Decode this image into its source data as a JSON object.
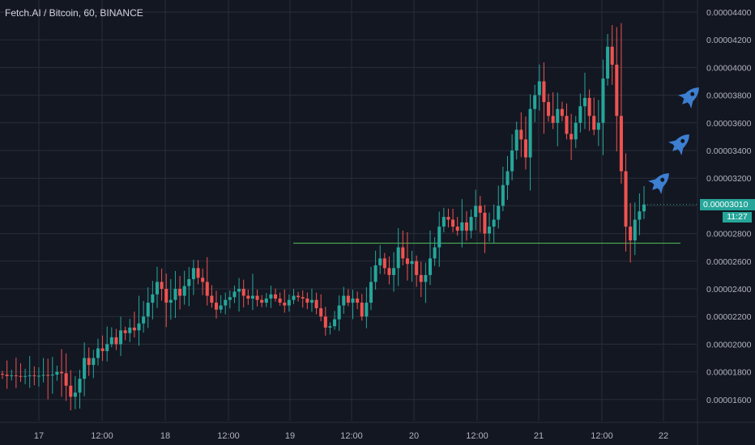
{
  "header": {
    "symbol": "Fetch.AI / Bitcoin",
    "separator": "/",
    "interval": "60",
    "exchange": "BINANCE",
    "title": "Fetch.AI / Bitcoin, 60, BINANCE"
  },
  "price_badge": {
    "value": "0.00003010",
    "price": 3.01e-05,
    "countdown": "11:27"
  },
  "colors": {
    "background": "#131722",
    "grid": "#2a2e39",
    "up": "#26a69a",
    "down": "#ef5350",
    "support_line": "#4caf50",
    "rocket": "#3d7fd1",
    "axis_text": "#b2b5be"
  },
  "icons": [
    "rocket-icon",
    "rocket-icon",
    "rocket-icon"
  ],
  "chart_data": {
    "type": "candlestick",
    "x_axis_labels": [
      "17",
      "12:00",
      "18",
      "12:00",
      "19",
      "12:00",
      "20",
      "12:00",
      "21",
      "12:00",
      "22"
    ],
    "y_axis_labels": [
      "0.00004400",
      "0.00004200",
      "0.00004000",
      "0.00003800",
      "0.00003600",
      "0.00003400",
      "0.00003200",
      "0.00003000",
      "0.00002800",
      "0.00002600",
      "0.00002400",
      "0.00002200",
      "0.00002000",
      "0.00001800",
      "0.00001600"
    ],
    "ylim": [
      1.48e-05,
      4.6e-05
    ],
    "grid": true,
    "support_level": 2.73e-05,
    "closes": [
      1.78e-05,
      1.77e-05,
      1.775e-05,
      1.77e-05,
      1.765e-05,
      1.77e-05,
      1.775e-05,
      1.77e-05,
      1.772e-05,
      1.778e-05,
      1.775e-05,
      1.78e-05,
      1.8e-05,
      1.79e-05,
      1.7e-05,
      1.62e-05,
      1.65e-05,
      1.75e-05,
      1.9e-05,
      1.85e-05,
      1.9e-05,
      1.97e-05,
      1.95e-05,
      2e-05,
      2.05e-05,
      2e-05,
      2.1e-05,
      2.08e-05,
      2.12e-05,
      2.1e-05,
      2.15e-05,
      2.2e-05,
      2.3e-05,
      2.36e-05,
      2.45e-05,
      2.4e-05,
      2.3e-05,
      2.32e-05,
      2.4e-05,
      2.35e-05,
      2.42e-05,
      2.47e-05,
      2.55e-05,
      2.48e-05,
      2.45e-05,
      2.35e-05,
      2.3e-05,
      2.25e-05,
      2.28e-05,
      2.32e-05,
      2.34e-05,
      2.38e-05,
      2.4e-05,
      2.35e-05,
      2.33e-05,
      2.35e-05,
      2.32e-05,
      2.3e-05,
      2.33e-05,
      2.36e-05,
      2.33e-05,
      2.3e-05,
      2.28e-05,
      2.32e-05,
      2.35e-05,
      2.34e-05,
      2.33e-05,
      2.3e-05,
      2.32e-05,
      2.26e-05,
      2.2e-05,
      2.12e-05,
      2.13e-05,
      2.18e-05,
      2.28e-05,
      2.35e-05,
      2.3e-05,
      2.33e-05,
      2.3e-05,
      2.2e-05,
      2.3e-05,
      2.45e-05,
      2.57e-05,
      2.62e-05,
      2.55e-05,
      2.5e-05,
      2.55e-05,
      2.7e-05,
      2.62e-05,
      2.58e-05,
      2.6e-05,
      2.5e-05,
      2.45e-05,
      2.5e-05,
      2.62e-05,
      2.7e-05,
      2.85e-05,
      2.92e-05,
      2.9e-05,
      2.85e-05,
      2.82e-05,
      2.88e-05,
      2.82e-05,
      2.92e-05,
      3e-05,
      2.95e-05,
      2.8e-05,
      2.85e-05,
      2.9e-05,
      3e-05,
      3.15e-05,
      3.25e-05,
      3.4e-05,
      3.55e-05,
      3.48e-05,
      3.35e-05,
      3.7e-05,
      3.8e-05,
      3.9e-05,
      3.75e-05,
      3.65e-05,
      3.6e-05,
      3.7e-05,
      3.65e-05,
      3.52e-05,
      3.48e-05,
      3.6e-05,
      3.72e-05,
      3.78e-05,
      3.65e-05,
      3.55e-05,
      3.6e-05,
      3.92e-05,
      4.15e-05,
      4.02e-05,
      3.65e-05,
      3.25e-05,
      2.85e-05,
      2.75e-05,
      2.9e-05,
      2.96e-05,
      3.01e-05
    ]
  }
}
